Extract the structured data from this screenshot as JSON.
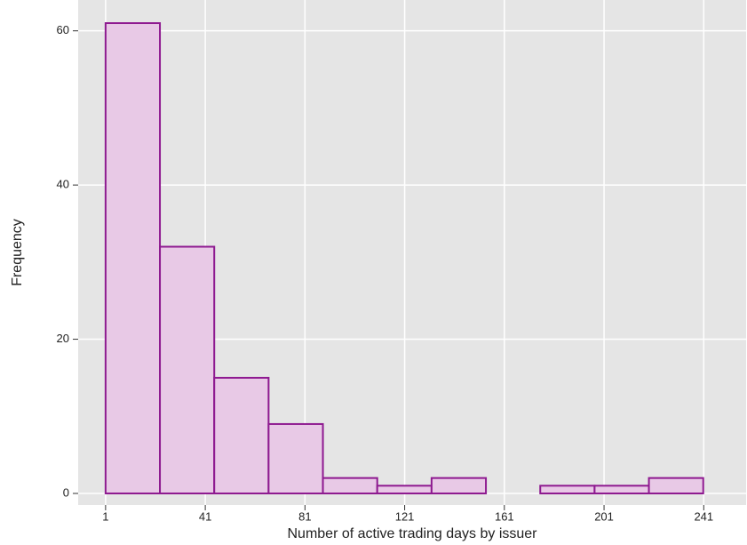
{
  "chart_data": {
    "type": "histogram",
    "x_label": "Number of active trading days by issuer",
    "y_label": "Frequency",
    "bins": [
      1,
      22.8,
      44.6,
      66.4,
      88.2,
      110,
      131.8,
      153.6,
      175.4,
      197.2,
      219,
      240.8
    ],
    "values": [
      61,
      32,
      15,
      9,
      2,
      1,
      2,
      0,
      1,
      1,
      2
    ],
    "color": "#e8c9e6",
    "edge_color": "#8e1a90",
    "background": "#e5e5e5",
    "xlim": [
      -10,
      258
    ],
    "ylim": [
      -1.5,
      64
    ],
    "xticks": [
      1,
      41,
      81,
      121,
      161,
      201,
      241
    ],
    "yticks": [
      0,
      20,
      40,
      60
    ],
    "grid": true
  }
}
